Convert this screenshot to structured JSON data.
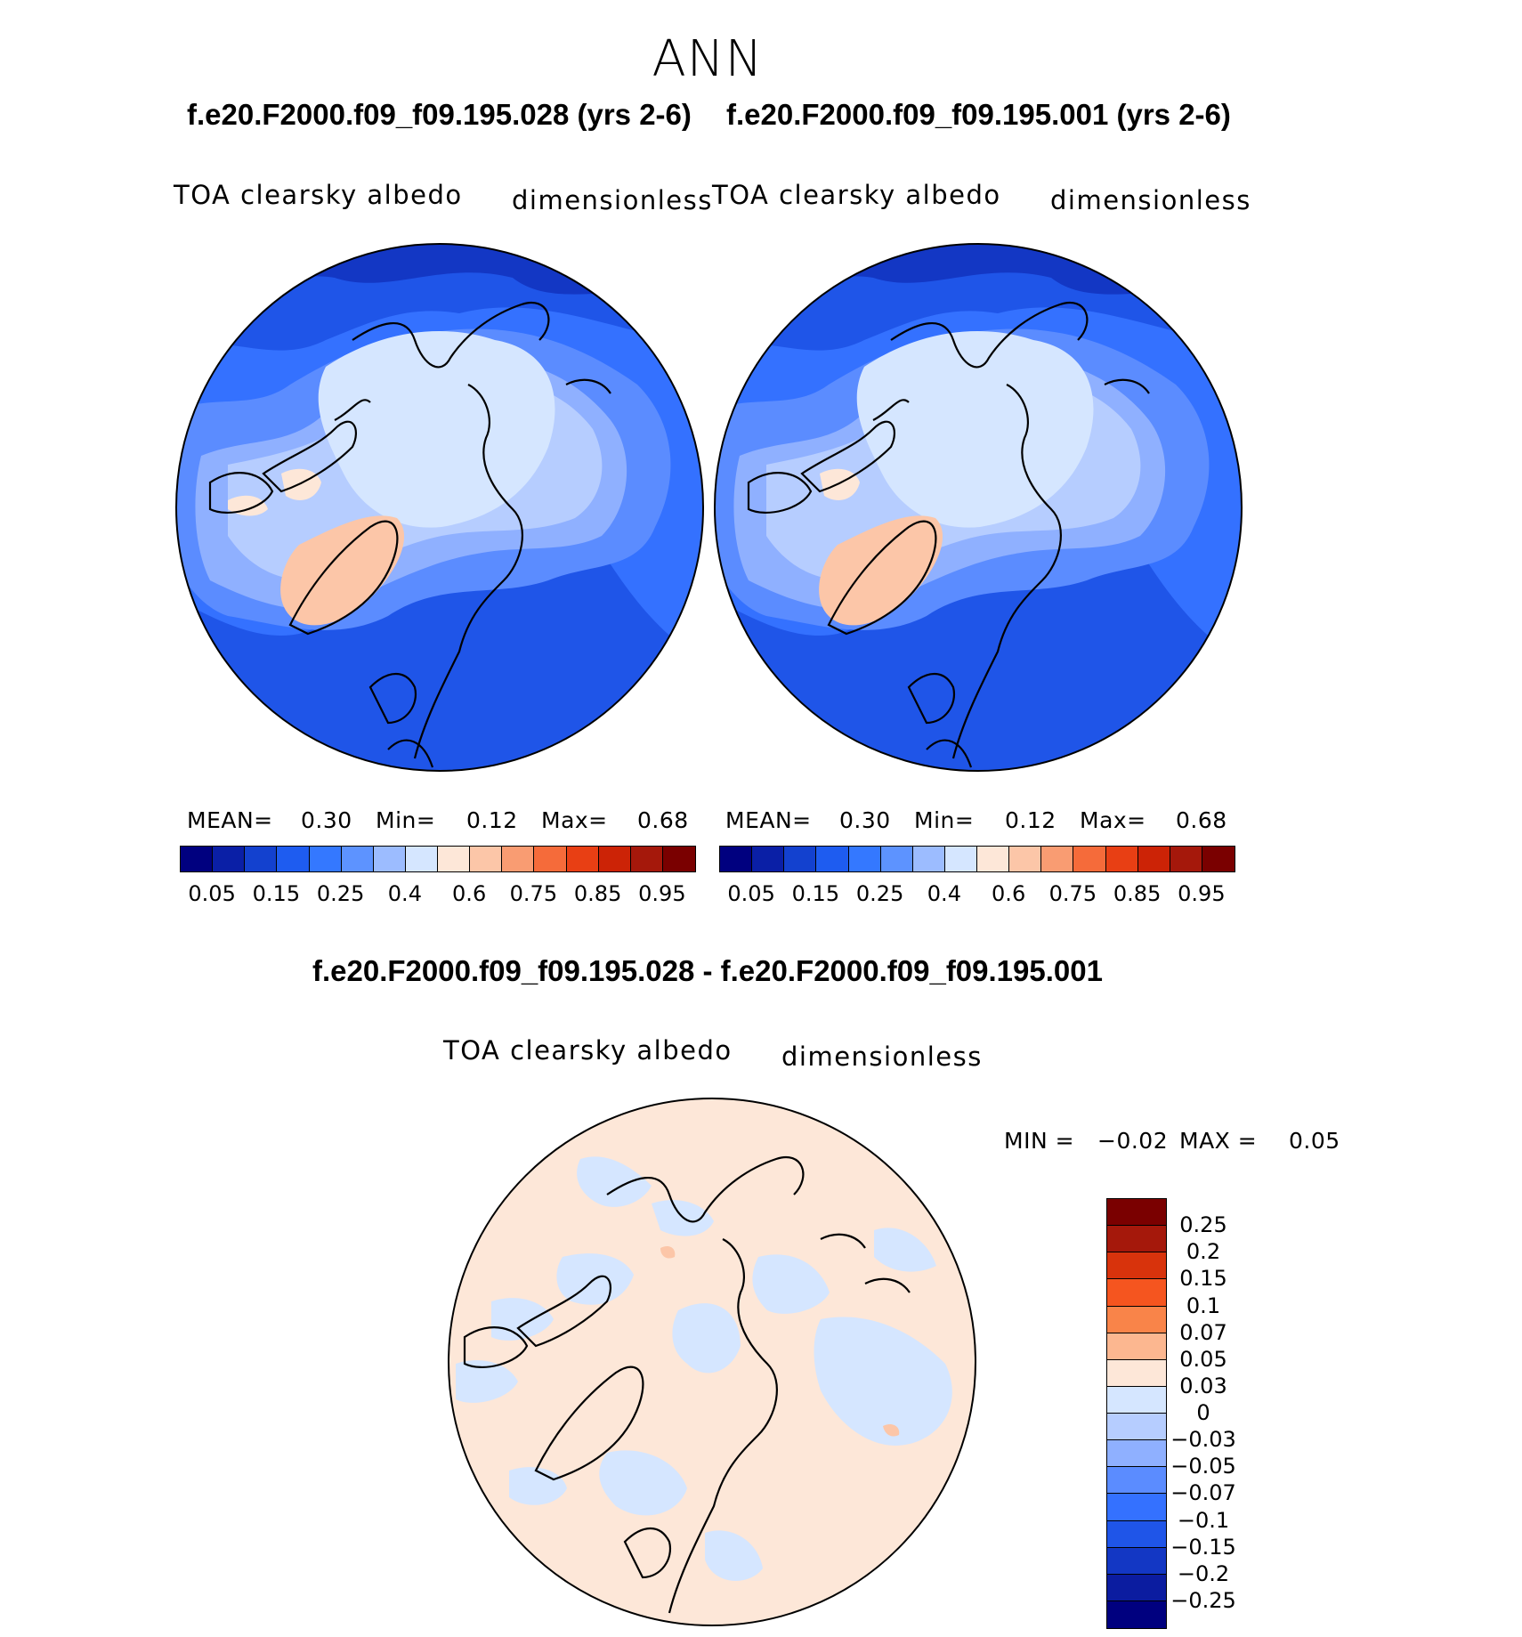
{
  "title": "ANN",
  "case_a_title": "f.e20.F2000.f09_f09.195.028 (yrs 2-6)",
  "case_b_title": "f.e20.F2000.f09_f09.195.001 (yrs 2-6)",
  "diff_title": "f.e20.F2000.f09_f09.195.028 - f.e20.F2000.f09_f09.195.001",
  "variable": "TOA clearsky albedo",
  "units": "dimensionless",
  "panel_a": {
    "stats": {
      "mean_label": "MEAN=",
      "mean": "0.30",
      "min_label": "Min=",
      "min": "0.12",
      "max_label": "Max=",
      "max": "0.68"
    }
  },
  "panel_b": {
    "stats": {
      "mean_label": "MEAN=",
      "mean": "0.30",
      "min_label": "Min=",
      "min": "0.12",
      "max_label": "Max=",
      "max": "0.68"
    }
  },
  "panel_diff": {
    "stats": {
      "min_label": "MIN =",
      "min": "−0.02",
      "max_label": "MAX =",
      "max": "0.05"
    }
  },
  "colorbar_main": {
    "colors": [
      "#00007f",
      "#0a1fa6",
      "#1341cf",
      "#1e5cf0",
      "#3478ff",
      "#5d93ff",
      "#9cbcff",
      "#d5e6ff",
      "#fde7d8",
      "#fcc6a8",
      "#f99c72",
      "#f56b3a",
      "#e83f14",
      "#cc2306",
      "#a5180b",
      "#7a0000"
    ],
    "tick_labels": [
      "0.05",
      "0.15",
      "0.25",
      "0.4",
      "0.6",
      "0.75",
      "0.85",
      "0.95"
    ]
  },
  "colorbar_diff": {
    "colors": [
      "#7a0000",
      "#a5180b",
      "#d8330c",
      "#f5551f",
      "#f98449",
      "#fcb790",
      "#fde7d8",
      "#d5e6ff",
      "#b6cdff",
      "#8fb0ff",
      "#5b8cff",
      "#3471ff",
      "#1f55e8",
      "#1337c4",
      "#0b1ca0",
      "#00007f"
    ],
    "tick_labels": [
      "0.25",
      "0.2",
      "0.15",
      "0.1",
      "0.07",
      "0.05",
      "0.03",
      "0",
      "−0.03",
      "−0.05",
      "−0.07",
      "−0.1",
      "−0.15",
      "−0.2",
      "−0.25"
    ]
  }
}
